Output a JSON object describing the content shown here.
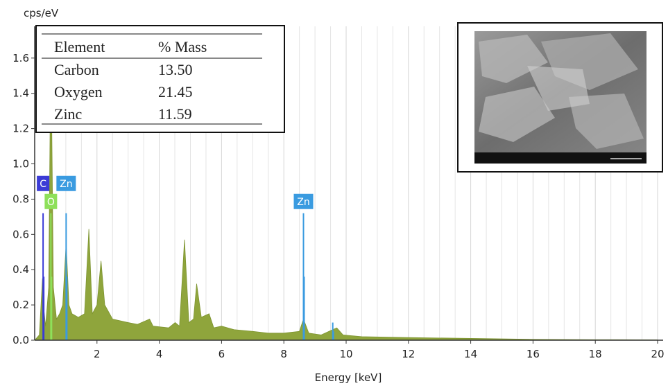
{
  "chart_data": {
    "type": "spectrum",
    "ylabel": "cps/eV",
    "xlabel": "Energy [keV]",
    "xlim": [
      0,
      20
    ],
    "ylim": [
      0,
      1.78
    ],
    "xticks": [
      2,
      4,
      6,
      8,
      10,
      12,
      14,
      16,
      18,
      20
    ],
    "x_minor_ticks": [
      0.5,
      1,
      1.5,
      2.5,
      3,
      3.5,
      4.5,
      5,
      5.5,
      6.5,
      7,
      7.5,
      8.5,
      9,
      9.5,
      10.5,
      11,
      11.5,
      12.5,
      13,
      13.5,
      14.5,
      15,
      15.5,
      16.5,
      17,
      17.5,
      18.5,
      19,
      19.5
    ],
    "yticks": [
      {
        "value": 0,
        "label": "0.0"
      },
      0.2,
      0.4,
      0.6,
      0.8,
      {
        "value": 1,
        "label": "1.0"
      },
      1.2,
      1.4,
      1.6
    ],
    "grid": true,
    "spectrum": {
      "color": "#8fa53c",
      "x": [
        0,
        0.15,
        0.25,
        0.28,
        0.35,
        0.45,
        0.52,
        0.6,
        0.7,
        0.8,
        0.9,
        1.01,
        1.1,
        1.2,
        1.4,
        1.6,
        1.74,
        1.85,
        2.0,
        2.13,
        2.25,
        2.5,
        3.0,
        3.3,
        3.69,
        3.8,
        4.3,
        4.51,
        4.65,
        4.81,
        4.95,
        5.1,
        5.2,
        5.35,
        5.6,
        5.75,
        6.0,
        6.4,
        7.0,
        7.5,
        8.0,
        8.5,
        8.63,
        8.8,
        9.2,
        9.57,
        9.7,
        9.9,
        10.5,
        12,
        14,
        16,
        18,
        20
      ],
      "y": [
        0,
        0.03,
        0.35,
        0.2,
        0.08,
        0.3,
        1.72,
        0.3,
        0.12,
        0.15,
        0.2,
        0.55,
        0.2,
        0.15,
        0.13,
        0.15,
        0.63,
        0.15,
        0.2,
        0.45,
        0.2,
        0.12,
        0.1,
        0.09,
        0.12,
        0.08,
        0.07,
        0.1,
        0.08,
        0.57,
        0.1,
        0.12,
        0.32,
        0.13,
        0.15,
        0.07,
        0.08,
        0.06,
        0.05,
        0.04,
        0.04,
        0.05,
        0.12,
        0.04,
        0.03,
        0.06,
        0.07,
        0.03,
        0.02,
        0.015,
        0.01,
        0.005,
        0.003,
        0.002
      ]
    },
    "markers": [
      {
        "label": "C",
        "x": 0.27,
        "height": 0.72,
        "color": "#3b3bd6"
      },
      {
        "label": "O",
        "x": 0.52,
        "height": 0.72,
        "color": "#8ee05a"
      },
      {
        "label": "Zn",
        "x": 1.01,
        "height": 0.72,
        "color": "#3a9be0"
      },
      {
        "label": "Zn",
        "x": 8.63,
        "height": 0.72,
        "color": "#3a9be0"
      },
      {
        "label": "",
        "x": 9.57,
        "height": 0.1,
        "color": "#3a9be0"
      }
    ]
  },
  "table": {
    "headers": [
      "Element",
      "% Mass"
    ],
    "rows": [
      [
        "Carbon",
        "13.50"
      ],
      [
        "Oxygen",
        "21.45"
      ],
      [
        "Zinc",
        "11.59"
      ]
    ]
  }
}
